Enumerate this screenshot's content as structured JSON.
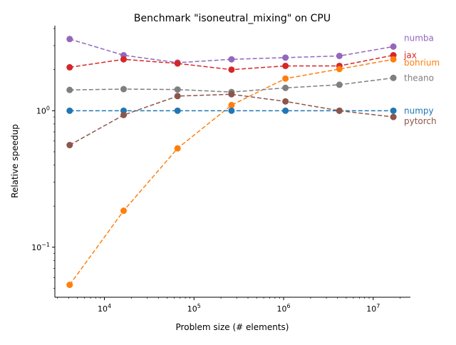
{
  "chart_data": {
    "type": "line",
    "title": "Benchmark \"isoneutral_mixing\" on CPU",
    "xlabel": "Problem size (# elements)",
    "ylabel": "Relative speedup",
    "xscale": "log",
    "yscale": "log",
    "xlim": [
      2800,
      26000000
    ],
    "ylim": [
      0.043,
      4.2
    ],
    "grid": false,
    "legend": "right-edge labels",
    "x": [
      4096,
      16384,
      65536,
      262144,
      1048576,
      4194304,
      16777216
    ],
    "x_ticks": [
      {
        "value": 10000,
        "base": "10",
        "exp": "4"
      },
      {
        "value": 100000,
        "base": "10",
        "exp": "5"
      },
      {
        "value": 1000000,
        "base": "10",
        "exp": "6"
      },
      {
        "value": 10000000,
        "base": "10",
        "exp": "7"
      }
    ],
    "y_ticks": [
      {
        "value": 0.1,
        "base": "10",
        "exp": "−1"
      },
      {
        "value": 1,
        "base": "10",
        "exp": "0"
      }
    ],
    "series": [
      {
        "name": "numba",
        "color": "#9467bd",
        "values": [
          3.35,
          2.55,
          2.25,
          2.38,
          2.45,
          2.52,
          2.95
        ]
      },
      {
        "name": "jax",
        "color": "#d62728",
        "values": [
          2.08,
          2.38,
          2.22,
          2.0,
          2.13,
          2.13,
          2.55
        ]
      },
      {
        "name": "bohrium",
        "color": "#ff7f0e",
        "values": [
          0.053,
          0.185,
          0.53,
          1.1,
          1.72,
          2.02,
          2.38
        ]
      },
      {
        "name": "theano",
        "color": "#7f7f7f",
        "values": [
          1.42,
          1.44,
          1.43,
          1.37,
          1.47,
          1.55,
          1.74
        ]
      },
      {
        "name": "numpy",
        "color": "#1f77b4",
        "values": [
          1.0,
          1.0,
          1.0,
          1.0,
          1.0,
          1.0,
          1.0
        ]
      },
      {
        "name": "pytorch",
        "color": "#8c564b",
        "values": [
          0.56,
          0.93,
          1.28,
          1.32,
          1.17,
          1.0,
          0.9
        ]
      }
    ]
  }
}
